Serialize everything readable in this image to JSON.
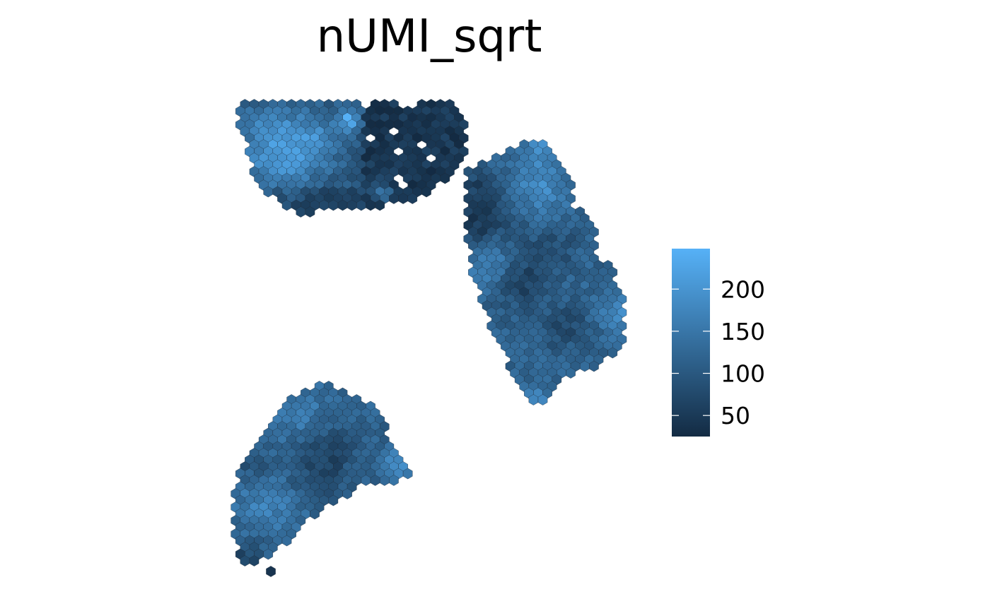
{
  "chart_data": {
    "type": "heatmap",
    "title": "nUMI_sqrt",
    "colorbar": {
      "min": 25,
      "max": 248,
      "low_color": "#132B43",
      "high_color": "#56B1F7",
      "ticks": [
        50,
        100,
        150,
        200
      ],
      "tick_labels": [
        "50",
        "100",
        "150",
        "200"
      ]
    },
    "spot_shape": "hexagon",
    "grid": false,
    "legend": "right",
    "regions": [
      {
        "name": "upper-left",
        "value_range": [
          30,
          245
        ]
      },
      {
        "name": "right",
        "value_range": [
          30,
          230
        ]
      },
      {
        "name": "lower-left",
        "value_range": [
          35,
          210
        ]
      }
    ]
  }
}
